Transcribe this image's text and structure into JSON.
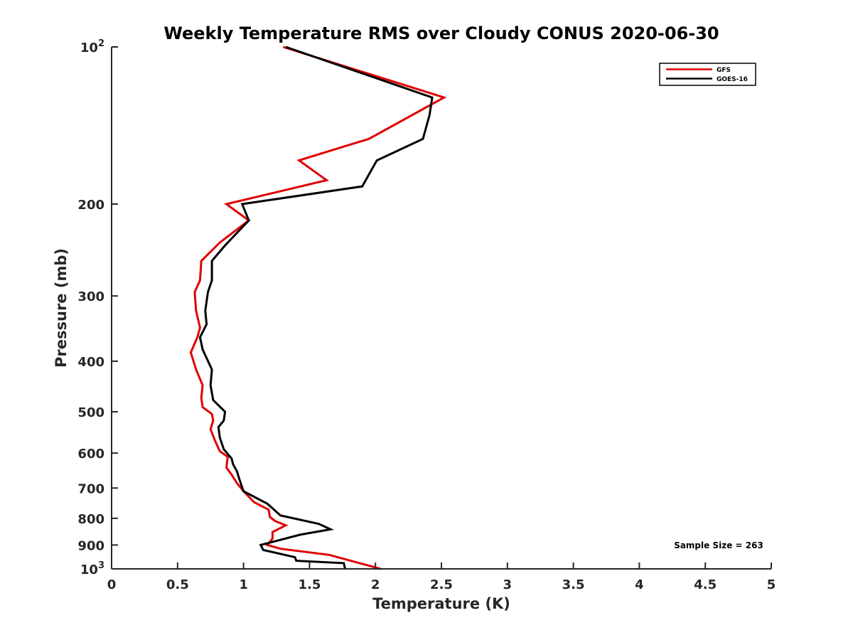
{
  "chart_data": {
    "type": "line",
    "title": "Weekly Temperature RMS over Cloudy CONUS 2020-06-30",
    "xlabel": "Temperature (K)",
    "ylabel": "Pressure (mb)",
    "xlim": [
      0,
      5
    ],
    "ylim": [
      100,
      1000
    ],
    "y_scale": "log",
    "y_reversed": true,
    "grid": false,
    "legend_position": "top-right",
    "x_ticks": [
      0,
      0.5,
      1,
      1.5,
      2,
      2.5,
      3,
      3.5,
      4,
      4.5,
      5
    ],
    "x_tick_labels": [
      "0",
      "0.5",
      "1",
      "1.5",
      "2",
      "2.5",
      "3",
      "3.5",
      "4",
      "4.5",
      "5"
    ],
    "y_ticks": [
      100,
      200,
      300,
      400,
      500,
      600,
      700,
      800,
      900,
      1000
    ],
    "y_tick_labels": [
      {
        "base": "10",
        "exp": "2"
      },
      {
        "base": "200",
        "exp": ""
      },
      {
        "base": "300",
        "exp": ""
      },
      {
        "base": "400",
        "exp": ""
      },
      {
        "base": "500",
        "exp": ""
      },
      {
        "base": "600",
        "exp": ""
      },
      {
        "base": "700",
        "exp": ""
      },
      {
        "base": "800",
        "exp": ""
      },
      {
        "base": "900",
        "exp": ""
      },
      {
        "base": "10",
        "exp": "3"
      }
    ],
    "series": [
      {
        "name": "GFS",
        "color": "#e00000",
        "points": [
          [
            1.3,
            100
          ],
          [
            2.52,
            125
          ],
          [
            1.95,
            150
          ],
          [
            1.42,
            165
          ],
          [
            1.63,
            180
          ],
          [
            0.87,
            200
          ],
          [
            1.04,
            215
          ],
          [
            0.82,
            237
          ],
          [
            0.68,
            257
          ],
          [
            0.67,
            280
          ],
          [
            0.63,
            295
          ],
          [
            0.64,
            320
          ],
          [
            0.67,
            345
          ],
          [
            0.65,
            360
          ],
          [
            0.6,
            385
          ],
          [
            0.64,
            415
          ],
          [
            0.69,
            445
          ],
          [
            0.68,
            470
          ],
          [
            0.69,
            490
          ],
          [
            0.76,
            505
          ],
          [
            0.77,
            520
          ],
          [
            0.75,
            540
          ],
          [
            0.78,
            565
          ],
          [
            0.82,
            595
          ],
          [
            0.88,
            610
          ],
          [
            0.87,
            640
          ],
          [
            0.91,
            660
          ],
          [
            0.95,
            685
          ],
          [
            1.0,
            710
          ],
          [
            1.08,
            745
          ],
          [
            1.19,
            770
          ],
          [
            1.2,
            795
          ],
          [
            1.24,
            810
          ],
          [
            1.32,
            825
          ],
          [
            1.22,
            850
          ],
          [
            1.22,
            875
          ],
          [
            1.18,
            900
          ],
          [
            1.28,
            915
          ],
          [
            1.65,
            940
          ],
          [
            2.04,
            1000
          ]
        ]
      },
      {
        "name": "GOES-16",
        "color": "#000000",
        "points": [
          [
            1.32,
            100
          ],
          [
            2.43,
            125
          ],
          [
            2.41,
            135
          ],
          [
            2.36,
            150
          ],
          [
            2.01,
            165
          ],
          [
            1.9,
            185
          ],
          [
            0.99,
            200
          ],
          [
            1.04,
            215
          ],
          [
            0.86,
            240
          ],
          [
            0.76,
            257
          ],
          [
            0.76,
            280
          ],
          [
            0.73,
            295
          ],
          [
            0.71,
            320
          ],
          [
            0.72,
            340
          ],
          [
            0.67,
            360
          ],
          [
            0.69,
            380
          ],
          [
            0.76,
            415
          ],
          [
            0.75,
            445
          ],
          [
            0.77,
            475
          ],
          [
            0.86,
            500
          ],
          [
            0.85,
            520
          ],
          [
            0.81,
            535
          ],
          [
            0.82,
            560
          ],
          [
            0.85,
            590
          ],
          [
            0.91,
            615
          ],
          [
            0.92,
            630
          ],
          [
            0.95,
            650
          ],
          [
            0.97,
            675
          ],
          [
            1.0,
            710
          ],
          [
            1.18,
            750
          ],
          [
            1.28,
            790
          ],
          [
            1.57,
            820
          ],
          [
            1.66,
            840
          ],
          [
            1.43,
            860
          ],
          [
            1.13,
            900
          ],
          [
            1.15,
            920
          ],
          [
            1.39,
            950
          ],
          [
            1.4,
            965
          ],
          [
            1.76,
            975
          ],
          [
            1.77,
            1000
          ]
        ]
      }
    ],
    "annotations": [
      "Sample Size = 263"
    ]
  }
}
